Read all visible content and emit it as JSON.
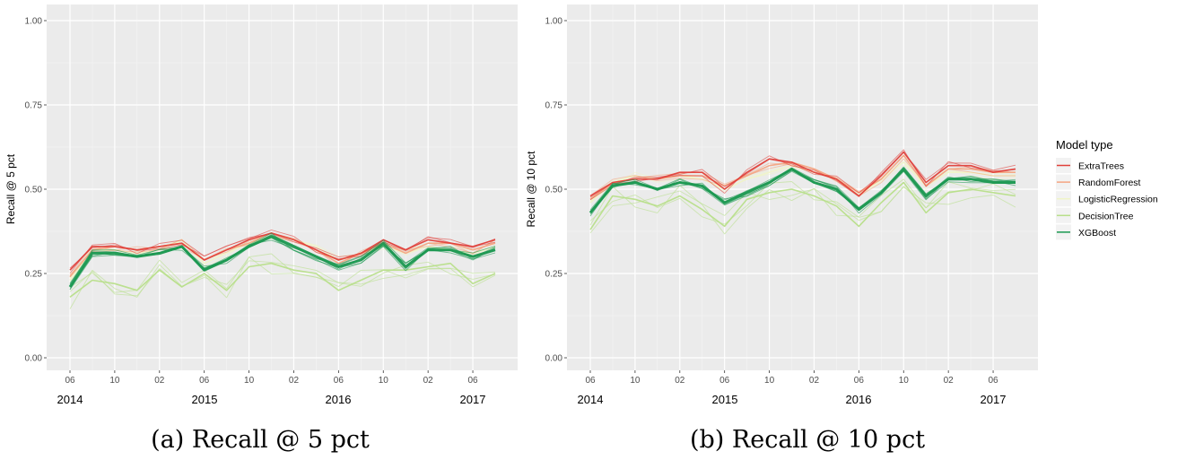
{
  "chart_data": [
    {
      "type": "line",
      "caption": "(a) Recall @ 5 pct",
      "ylabel": "Recall @ 5 pct",
      "xlabel": "",
      "ylim": [
        0,
        1
      ],
      "yticks": [
        "0.00",
        "0.25",
        "0.50",
        "0.75",
        "1.00"
      ],
      "xticks": [
        "06",
        "10",
        "02",
        "06",
        "10",
        "02",
        "06",
        "10",
        "02",
        "06"
      ],
      "years": [
        "2014",
        "2015",
        "2016",
        "2017"
      ],
      "grid": true,
      "x": [
        "2014-06",
        "2014-08",
        "2014-10",
        "2014-12",
        "2015-02",
        "2015-04",
        "2015-06",
        "2015-08",
        "2015-10",
        "2015-12",
        "2016-02",
        "2016-04",
        "2016-06",
        "2016-08",
        "2016-10",
        "2016-12",
        "2017-02",
        "2017-04",
        "2017-06",
        "2017-08"
      ],
      "series": [
        {
          "name": "ExtraTrees",
          "values": [
            0.26,
            0.33,
            0.33,
            0.32,
            0.33,
            0.34,
            0.29,
            0.32,
            0.35,
            0.37,
            0.35,
            0.32,
            0.29,
            0.31,
            0.35,
            0.32,
            0.35,
            0.34,
            0.33,
            0.35
          ]
        },
        {
          "name": "RandomForest",
          "values": [
            0.24,
            0.32,
            0.33,
            0.32,
            0.33,
            0.34,
            0.29,
            0.32,
            0.34,
            0.37,
            0.35,
            0.32,
            0.28,
            0.31,
            0.34,
            0.31,
            0.34,
            0.34,
            0.32,
            0.34
          ]
        },
        {
          "name": "LogisticRegression",
          "values": [
            0.23,
            0.32,
            0.32,
            0.31,
            0.32,
            0.35,
            0.28,
            0.31,
            0.34,
            0.36,
            0.35,
            0.33,
            0.29,
            0.31,
            0.33,
            0.31,
            0.33,
            0.32,
            0.31,
            0.33
          ]
        },
        {
          "name": "DecisionTree",
          "values": [
            0.18,
            0.23,
            0.22,
            0.2,
            0.26,
            0.21,
            0.25,
            0.2,
            0.27,
            0.28,
            0.26,
            0.25,
            0.2,
            0.23,
            0.26,
            0.26,
            0.27,
            0.28,
            0.22,
            0.25
          ]
        },
        {
          "name": "XGBoost",
          "values": [
            0.21,
            0.31,
            0.31,
            0.3,
            0.31,
            0.33,
            0.26,
            0.29,
            0.33,
            0.36,
            0.33,
            0.3,
            0.27,
            0.29,
            0.34,
            0.27,
            0.32,
            0.32,
            0.3,
            0.32
          ]
        }
      ]
    },
    {
      "type": "line",
      "caption": "(b) Recall @ 10 pct",
      "ylabel": "Recall @ 10 pct",
      "xlabel": "",
      "ylim": [
        0,
        1
      ],
      "yticks": [
        "0.00",
        "0.25",
        "0.50",
        "0.75",
        "1.00"
      ],
      "xticks": [
        "06",
        "10",
        "02",
        "06",
        "10",
        "02",
        "06",
        "10",
        "02",
        "06"
      ],
      "years": [
        "2014",
        "2015",
        "2016",
        "2017"
      ],
      "grid": true,
      "x": [
        "2014-06",
        "2014-08",
        "2014-10",
        "2014-12",
        "2015-02",
        "2015-04",
        "2015-06",
        "2015-08",
        "2015-10",
        "2015-12",
        "2016-02",
        "2016-04",
        "2016-06",
        "2016-08",
        "2016-10",
        "2016-12",
        "2017-02",
        "2017-04",
        "2017-06",
        "2017-08"
      ],
      "series": [
        {
          "name": "ExtraTrees",
          "values": [
            0.48,
            0.52,
            0.53,
            0.53,
            0.55,
            0.55,
            0.5,
            0.55,
            0.59,
            0.58,
            0.55,
            0.53,
            0.48,
            0.54,
            0.61,
            0.52,
            0.57,
            0.57,
            0.55,
            0.56
          ]
        },
        {
          "name": "RandomForest",
          "values": [
            0.47,
            0.52,
            0.53,
            0.53,
            0.54,
            0.54,
            0.51,
            0.54,
            0.57,
            0.58,
            0.56,
            0.53,
            0.49,
            0.53,
            0.6,
            0.51,
            0.56,
            0.56,
            0.55,
            0.55
          ]
        },
        {
          "name": "LogisticRegression",
          "values": [
            0.46,
            0.52,
            0.54,
            0.53,
            0.54,
            0.53,
            0.5,
            0.53,
            0.55,
            0.57,
            0.55,
            0.53,
            0.48,
            0.53,
            0.58,
            0.51,
            0.55,
            0.55,
            0.54,
            0.54
          ]
        },
        {
          "name": "DecisionTree",
          "values": [
            0.38,
            0.48,
            0.47,
            0.45,
            0.48,
            0.44,
            0.39,
            0.47,
            0.49,
            0.5,
            0.48,
            0.45,
            0.39,
            0.46,
            0.52,
            0.43,
            0.49,
            0.5,
            0.49,
            0.48
          ]
        },
        {
          "name": "XGBoost",
          "values": [
            0.43,
            0.51,
            0.52,
            0.5,
            0.52,
            0.51,
            0.46,
            0.49,
            0.52,
            0.56,
            0.52,
            0.5,
            0.44,
            0.49,
            0.56,
            0.48,
            0.53,
            0.53,
            0.52,
            0.52
          ]
        }
      ]
    }
  ],
  "legend": {
    "title": "Model type",
    "placement": "right",
    "items": [
      {
        "name": "ExtraTrees",
        "color": "#e0403a"
      },
      {
        "name": "RandomForest",
        "color": "#f4a582"
      },
      {
        "name": "LogisticRegression",
        "color": "#f0f4c8"
      },
      {
        "name": "DecisionTree",
        "color": "#b8df8a"
      },
      {
        "name": "XGBoost",
        "color": "#1a9850"
      }
    ]
  }
}
